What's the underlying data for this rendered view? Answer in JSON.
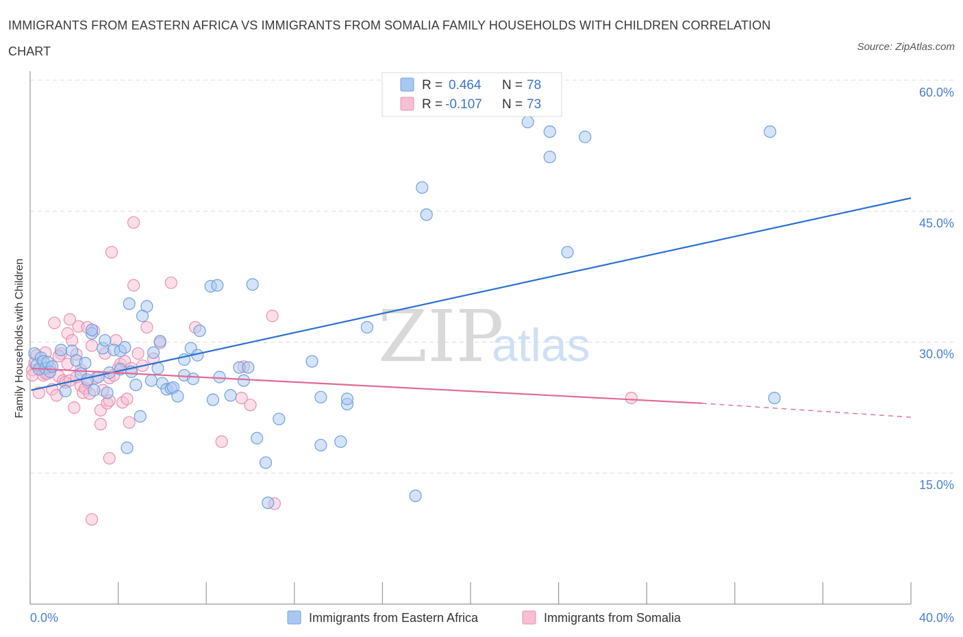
{
  "title": "IMMIGRANTS FROM EASTERN AFRICA VS IMMIGRANTS FROM SOMALIA FAMILY HOUSEHOLDS WITH CHILDREN CORRELATION CHART",
  "source": "Source: ZipAtlas.com",
  "watermark": {
    "zip": "ZIP",
    "atlas": "atlas"
  },
  "colors": {
    "blue_fill": "#a9c8f0",
    "blue_stroke": "#6f9fe0",
    "blue_line": "#2a6fd0",
    "pink_fill": "#f6bfd3",
    "pink_stroke": "#ea8fb0",
    "pink_line": "#e06a95",
    "grid": "#dcdcdc",
    "axis_label": "#4a7fd0"
  },
  "legend": {
    "rows": [
      {
        "r_label": "R =",
        "r_value": "0.464",
        "n_label": "N =",
        "n_value": "78"
      },
      {
        "r_label": "R =",
        "r_value": "-0.107",
        "n_label": "N =",
        "n_value": "73"
      }
    ]
  },
  "chart_data": {
    "type": "scatter",
    "xlabel": "",
    "ylabel": "Family Households with Children",
    "xlim": [
      0,
      40
    ],
    "ylim": [
      0,
      60
    ],
    "x_tick_labels": [
      "0.0%",
      "40.0%"
    ],
    "y_ticks": [
      15,
      30,
      45,
      60
    ],
    "y_tick_labels": [
      "15.0%",
      "30.0%",
      "45.0%",
      "60.0%"
    ],
    "series": [
      {
        "name": "Immigrants from Eastern Africa",
        "color": "blue",
        "trend": {
          "x": [
            0.05,
            40.0
          ],
          "y": [
            24.5,
            46.5
          ],
          "dashed_from": null
        },
        "points": [
          [
            0.2,
            28.7
          ],
          [
            0.3,
            27.4
          ],
          [
            0.4,
            26.9
          ],
          [
            0.5,
            28.2
          ],
          [
            0.6,
            27.8
          ],
          [
            0.7,
            27.0
          ],
          [
            0.8,
            27.7
          ],
          [
            0.9,
            26.6
          ],
          [
            1.0,
            27.2
          ],
          [
            1.4,
            29.1
          ],
          [
            1.6,
            24.4
          ],
          [
            1.9,
            29.0
          ],
          [
            2.1,
            27.9
          ],
          [
            2.3,
            26.4
          ],
          [
            2.5,
            27.6
          ],
          [
            2.6,
            25.7
          ],
          [
            2.8,
            31.0
          ],
          [
            2.8,
            31.4
          ],
          [
            2.9,
            24.5
          ],
          [
            3.1,
            26.0
          ],
          [
            3.3,
            29.3
          ],
          [
            3.4,
            30.2
          ],
          [
            3.5,
            24.2
          ],
          [
            3.6,
            26.5
          ],
          [
            3.8,
            29.1
          ],
          [
            4.1,
            29.0
          ],
          [
            4.1,
            26.9
          ],
          [
            4.3,
            29.4
          ],
          [
            4.4,
            17.9
          ],
          [
            4.5,
            34.4
          ],
          [
            4.6,
            26.6
          ],
          [
            4.8,
            25.1
          ],
          [
            5.0,
            21.5
          ],
          [
            5.1,
            33.0
          ],
          [
            5.3,
            34.1
          ],
          [
            5.5,
            25.6
          ],
          [
            5.6,
            28.8
          ],
          [
            5.8,
            27.0
          ],
          [
            5.9,
            30.1
          ],
          [
            6.0,
            25.3
          ],
          [
            6.2,
            24.6
          ],
          [
            6.4,
            24.7
          ],
          [
            6.5,
            24.8
          ],
          [
            6.7,
            23.8
          ],
          [
            7.0,
            28.0
          ],
          [
            7.0,
            26.2
          ],
          [
            7.3,
            29.3
          ],
          [
            7.4,
            25.8
          ],
          [
            7.6,
            28.5
          ],
          [
            7.7,
            31.3
          ],
          [
            8.2,
            36.4
          ],
          [
            8.3,
            23.4
          ],
          [
            8.5,
            36.5
          ],
          [
            8.6,
            26.0
          ],
          [
            9.1,
            23.9
          ],
          [
            9.5,
            27.1
          ],
          [
            9.7,
            25.6
          ],
          [
            9.9,
            27.1
          ],
          [
            10.1,
            36.6
          ],
          [
            10.3,
            19.0
          ],
          [
            10.7,
            16.2
          ],
          [
            10.8,
            11.6
          ],
          [
            11.3,
            21.2
          ],
          [
            12.8,
            27.8
          ],
          [
            13.2,
            18.2
          ],
          [
            13.2,
            23.7
          ],
          [
            14.1,
            18.6
          ],
          [
            14.4,
            22.9
          ],
          [
            14.4,
            23.5
          ],
          [
            15.3,
            31.7
          ],
          [
            17.5,
            12.4
          ],
          [
            17.8,
            47.7
          ],
          [
            18.0,
            44.6
          ],
          [
            22.6,
            55.2
          ],
          [
            23.6,
            54.1
          ],
          [
            23.6,
            51.2
          ],
          [
            24.4,
            40.3
          ],
          [
            25.2,
            53.5
          ],
          [
            33.6,
            54.1
          ],
          [
            33.8,
            23.6
          ]
        ]
      },
      {
        "name": "Immigrants from Somalia",
        "color": "pink",
        "trend": {
          "x": [
            0.05,
            30.5
          ],
          "y": [
            27.0,
            23.0
          ],
          "dashed_from": 30.5,
          "dash_end": [
            40.0,
            21.4
          ]
        },
        "points": [
          [
            0.1,
            26.8
          ],
          [
            0.1,
            26.2
          ],
          [
            0.3,
            28.5
          ],
          [
            0.4,
            24.2
          ],
          [
            0.5,
            26.9
          ],
          [
            0.6,
            26.2
          ],
          [
            0.7,
            28.8
          ],
          [
            0.7,
            26.4
          ],
          [
            0.8,
            26.4
          ],
          [
            0.9,
            27.1
          ],
          [
            1.0,
            24.6
          ],
          [
            1.1,
            32.2
          ],
          [
            1.2,
            23.9
          ],
          [
            1.3,
            26.1
          ],
          [
            1.4,
            28.7
          ],
          [
            1.5,
            25.6
          ],
          [
            1.6,
            25.4
          ],
          [
            1.7,
            31.0
          ],
          [
            1.8,
            32.6
          ],
          [
            1.8,
            25.6
          ],
          [
            1.9,
            30.2
          ],
          [
            2.0,
            22.5
          ],
          [
            2.1,
            28.6
          ],
          [
            2.2,
            31.8
          ],
          [
            2.3,
            26.8
          ],
          [
            2.3,
            25.0
          ],
          [
            2.4,
            24.2
          ],
          [
            2.5,
            24.7
          ],
          [
            2.6,
            31.7
          ],
          [
            2.6,
            25.5
          ],
          [
            2.7,
            24.1
          ],
          [
            2.8,
            29.6
          ],
          [
            2.9,
            31.3
          ],
          [
            3.0,
            25.9
          ],
          [
            3.2,
            22.2
          ],
          [
            3.2,
            20.6
          ],
          [
            3.3,
            24.5
          ],
          [
            3.4,
            28.7
          ],
          [
            3.5,
            23.0
          ],
          [
            3.6,
            25.9
          ],
          [
            3.6,
            23.3
          ],
          [
            3.7,
            40.3
          ],
          [
            3.8,
            26.2
          ],
          [
            3.9,
            30.2
          ],
          [
            4.0,
            27.0
          ],
          [
            4.1,
            27.5
          ],
          [
            4.2,
            23.1
          ],
          [
            4.3,
            27.8
          ],
          [
            4.4,
            23.5
          ],
          [
            4.5,
            20.8
          ],
          [
            4.7,
            36.5
          ],
          [
            4.7,
            43.7
          ],
          [
            4.9,
            28.7
          ],
          [
            5.1,
            27.3
          ],
          [
            5.3,
            31.7
          ],
          [
            5.6,
            28.1
          ],
          [
            5.9,
            29.9
          ],
          [
            6.4,
            36.8
          ],
          [
            7.5,
            31.7
          ],
          [
            8.7,
            18.6
          ],
          [
            9.6,
            23.6
          ],
          [
            9.7,
            27.2
          ],
          [
            10.0,
            22.8
          ],
          [
            11.0,
            33.0
          ],
          [
            11.1,
            11.5
          ],
          [
            3.6,
            16.7
          ],
          [
            2.8,
            9.7
          ],
          [
            1.3,
            28.4
          ],
          [
            2.1,
            26.0
          ],
          [
            0.2,
            27.6
          ],
          [
            1.7,
            27.5
          ],
          [
            27.3,
            23.6
          ],
          [
            4.6,
            27.0
          ]
        ]
      }
    ],
    "bottom_legend": [
      "Immigrants from Eastern Africa",
      "Immigrants from Somalia"
    ]
  }
}
